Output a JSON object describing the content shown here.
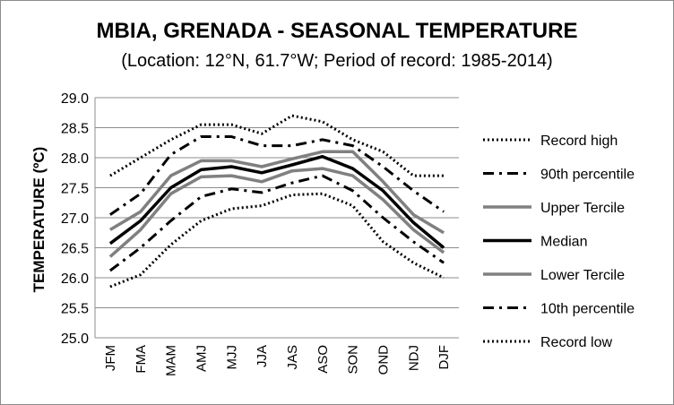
{
  "chart_data": {
    "type": "line",
    "title": "MBIA, GRENADA - SEASONAL TEMPERATURE",
    "subtitle": "(Location: 12°N, 61.7°W; Period of record: 1985-2014)",
    "xlabel": "",
    "ylabel": "TEMPERATURE (ºC)",
    "ylim": [
      25.0,
      29.0
    ],
    "ytick_step": 0.5,
    "grid": true,
    "legend_position": "right",
    "categories": [
      "JFM",
      "FMA",
      "MAM",
      "AMJ",
      "MJJ",
      "JJA",
      "JAS",
      "ASO",
      "SON",
      "OND",
      "NDJ",
      "DJF"
    ],
    "series": [
      {
        "name": "Record high",
        "color": "#000000",
        "style": "dotted",
        "values": [
          27.7,
          28.0,
          28.3,
          28.55,
          28.55,
          28.4,
          28.7,
          28.6,
          28.3,
          28.1,
          27.7,
          27.7
        ]
      },
      {
        "name": "90th percentile",
        "color": "#000000",
        "style": "dashdot",
        "values": [
          27.05,
          27.4,
          28.05,
          28.35,
          28.35,
          28.2,
          28.2,
          28.3,
          28.2,
          27.85,
          27.45,
          27.1
        ]
      },
      {
        "name": "Upper Tercile",
        "color": "#808080",
        "style": "solid",
        "values": [
          26.8,
          27.1,
          27.7,
          27.95,
          27.95,
          27.85,
          27.98,
          28.1,
          28.1,
          27.6,
          27.05,
          26.75
        ]
      },
      {
        "name": "Median",
        "color": "#000000",
        "style": "solid",
        "values": [
          26.57,
          26.95,
          27.5,
          27.8,
          27.85,
          27.75,
          27.88,
          28.02,
          27.82,
          27.45,
          26.92,
          26.5
        ]
      },
      {
        "name": "Lower Tercile",
        "color": "#808080",
        "style": "solid",
        "values": [
          26.35,
          26.8,
          27.4,
          27.68,
          27.7,
          27.6,
          27.78,
          27.82,
          27.7,
          27.3,
          26.8,
          26.42
        ]
      },
      {
        "name": "10th percentile",
        "color": "#000000",
        "style": "dashdot",
        "values": [
          26.12,
          26.5,
          26.95,
          27.35,
          27.48,
          27.42,
          27.58,
          27.7,
          27.45,
          27.0,
          26.6,
          26.25
        ]
      },
      {
        "name": "Record low",
        "color": "#000000",
        "style": "dotted",
        "values": [
          25.85,
          26.05,
          26.55,
          26.95,
          27.15,
          27.2,
          27.38,
          27.4,
          27.2,
          26.6,
          26.25,
          26.0
        ]
      }
    ]
  }
}
